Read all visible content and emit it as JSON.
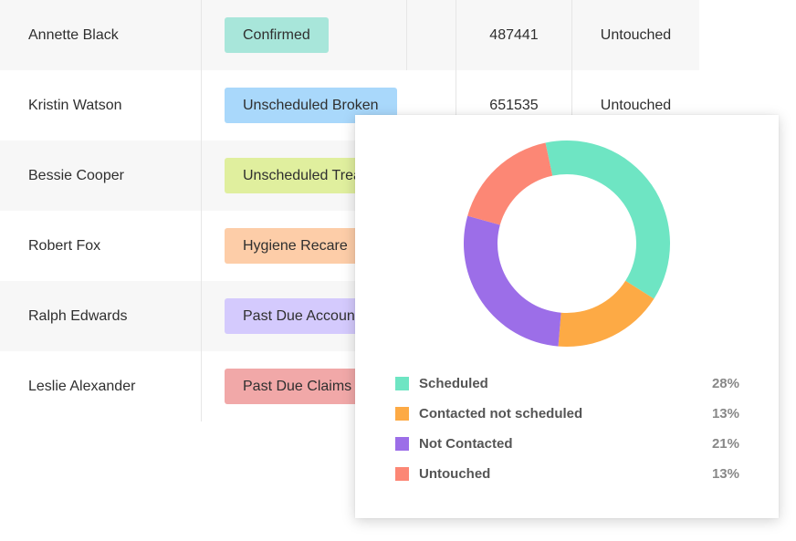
{
  "table": {
    "rows": [
      {
        "name": "Annette Black",
        "tag": "Confirmed",
        "tag_color": "#a8e6da",
        "id": "487441",
        "status": "Untouched"
      },
      {
        "name": "Kristin Watson",
        "tag": "Unscheduled Broken",
        "tag_color": "#a9d8fb",
        "id": "651535",
        "status": "Untouched"
      },
      {
        "name": "Bessie Cooper",
        "tag": "Unscheduled Treatment",
        "tag_color": "#e0ef9e",
        "id": "",
        "status": ""
      },
      {
        "name": "Robert Fox",
        "tag": "Hygiene Recare",
        "tag_color": "#fdcda8",
        "id": "",
        "status": ""
      },
      {
        "name": "Ralph Edwards",
        "tag": "Past Due Accounts",
        "tag_color": "#d4cafd",
        "id": "",
        "status": ""
      },
      {
        "name": "Leslie Alexander",
        "tag": "Past Due Claims",
        "tag_color": "#f1a8a8",
        "id": "",
        "status": ""
      }
    ]
  },
  "chart_data": {
    "type": "pie",
    "donut": true,
    "legend_position": "bottom",
    "colors": [
      "#6ee5c3",
      "#fdaa45",
      "#9c6ee8",
      "#fc8775"
    ],
    "categories": [
      "Scheduled",
      "Contacted not scheduled",
      "Not Contacted",
      "Untouched"
    ],
    "values": [
      28,
      13,
      21,
      13
    ],
    "value_labels": [
      "28%",
      "13%",
      "21%",
      "13%"
    ]
  }
}
